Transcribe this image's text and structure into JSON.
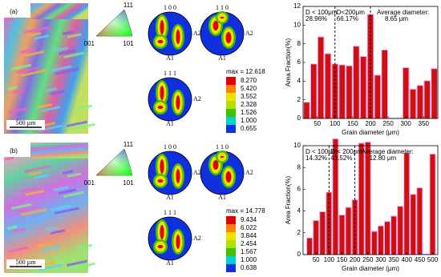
{
  "panels": [
    {
      "label": "(a)",
      "scale_bar": "500 µm",
      "ipf": {
        "top": "111",
        "left": "001",
        "right": "101"
      },
      "pole_figures": [
        "1 0 0",
        "1 1 0",
        "1 1 1"
      ],
      "pole_axes": [
        "A1",
        "A2"
      ],
      "max": "max = 12.618",
      "legend": [
        "8.270",
        "5.420",
        "3.552",
        "2.328",
        "1.526",
        "1.000",
        "0.655"
      ]
    },
    {
      "label": "(b)",
      "scale_bar": "500 µm",
      "ipf": {
        "top": "111",
        "left": "001",
        "right": "101"
      },
      "pole_figures": [
        "1 0 0",
        "1 1 0",
        "1 1 1"
      ],
      "pole_axes": [
        "A1",
        "A2"
      ],
      "max": "max = 14.778",
      "legend": [
        "9.434",
        "6.022",
        "3.844",
        "2.454",
        "1.567",
        "1.000",
        "0.638"
      ]
    }
  ],
  "chart_data": [
    {
      "type": "histogram",
      "xlabel": "Grain diameter (μm)",
      "ylabel": "Area Fraction(%)",
      "color": "#d01010",
      "bins": [
        10,
        30,
        50,
        70,
        90,
        110,
        130,
        150,
        170,
        190,
        210,
        230,
        250,
        270,
        290,
        310,
        330,
        350,
        370,
        390
      ],
      "values": [
        1.7,
        5.8,
        8.7,
        6.9,
        5.8,
        5.7,
        5.6,
        7.7,
        6.6,
        11.1,
        4.6,
        7.3,
        0,
        0,
        5.4,
        3.1,
        3.5,
        4.0,
        5.3
      ],
      "xlim": [
        10,
        390
      ],
      "ylim": [
        0,
        12
      ],
      "xticks": [
        50,
        100,
        150,
        200,
        250,
        300,
        350
      ],
      "yticks": [
        0,
        2,
        4,
        6,
        8,
        10,
        12
      ],
      "reference_lines": [
        100,
        200
      ],
      "annotations": [
        "D < 100μm",
        "28.96%",
        "D<200μm",
        "66.17%",
        "Average diameter:",
        "8.65 μm"
      ]
    },
    {
      "type": "histogram",
      "xlabel": "Grain diameter (μm)",
      "ylabel": "Area Fraction(%)",
      "color": "#d01010",
      "bins": [
        12.5,
        37.5,
        62.5,
        87.5,
        112.5,
        137.5,
        162.5,
        187.5,
        212.5,
        237.5,
        262.5,
        287.5,
        312.5,
        337.5,
        362.5,
        387.5,
        412.5,
        437.5,
        462.5,
        487.5,
        512.5
      ],
      "values": [
        1.5,
        3.1,
        3.9,
        5.7,
        10.6,
        3.6,
        4.3,
        5.0,
        10.2,
        10.3,
        2.1,
        2.6,
        3.0,
        3.5,
        4.4,
        9.3,
        5.5,
        6.1,
        0,
        9.2
      ],
      "xlim": [
        0,
        520
      ],
      "ylim": [
        0,
        10
      ],
      "xticks": [
        50,
        100,
        150,
        200,
        250,
        300,
        350,
        400,
        450,
        500
      ],
      "yticks": [
        0,
        2,
        4,
        6,
        8,
        10
      ],
      "reference_lines": [
        100,
        200
      ],
      "annotations": [
        "D < 100μm",
        "14.32%",
        "D < 200μm",
        "43.52%",
        "Average diameter:",
        "12.80 μm"
      ]
    }
  ]
}
